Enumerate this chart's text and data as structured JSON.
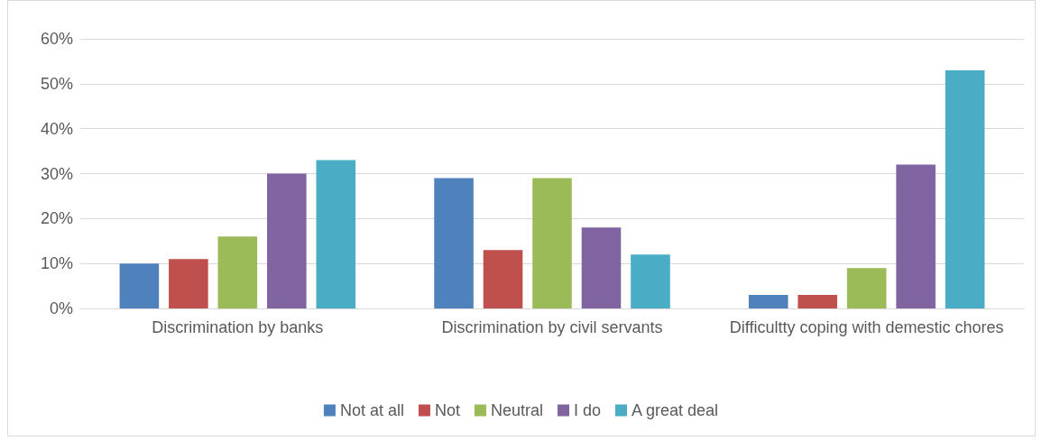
{
  "chart_data": {
    "type": "bar",
    "categories": [
      "Discrimination by banks",
      "Discrimination by civil servants",
      "Difficultty coping with demestic chores"
    ],
    "series": [
      {
        "name": "Not at all",
        "color": "#4f81bd",
        "values": [
          0.1,
          0.29,
          0.03
        ]
      },
      {
        "name": "Not",
        "color": "#c0504d",
        "values": [
          0.11,
          0.13,
          0.03
        ]
      },
      {
        "name": "Neutral",
        "color": "#9bbb59",
        "values": [
          0.16,
          0.29,
          0.09
        ]
      },
      {
        "name": "I do",
        "color": "#8064a2",
        "values": [
          0.3,
          0.18,
          0.32
        ]
      },
      {
        "name": "A great deal",
        "color": "#4bacc6",
        "values": [
          0.33,
          0.12,
          0.53
        ]
      }
    ],
    "ylim": [
      0,
      0.6
    ],
    "yticks": [
      {
        "value": 0,
        "label": "0%"
      },
      {
        "value": 0.1,
        "label": "10%"
      },
      {
        "value": 0.2,
        "label": "20%"
      },
      {
        "value": 0.3,
        "label": "30%"
      },
      {
        "value": 0.4,
        "label": "40%"
      },
      {
        "value": 0.5,
        "label": "50%"
      },
      {
        "value": 0.6,
        "label": "60%"
      }
    ],
    "grid": "y",
    "legend": "bottom"
  }
}
